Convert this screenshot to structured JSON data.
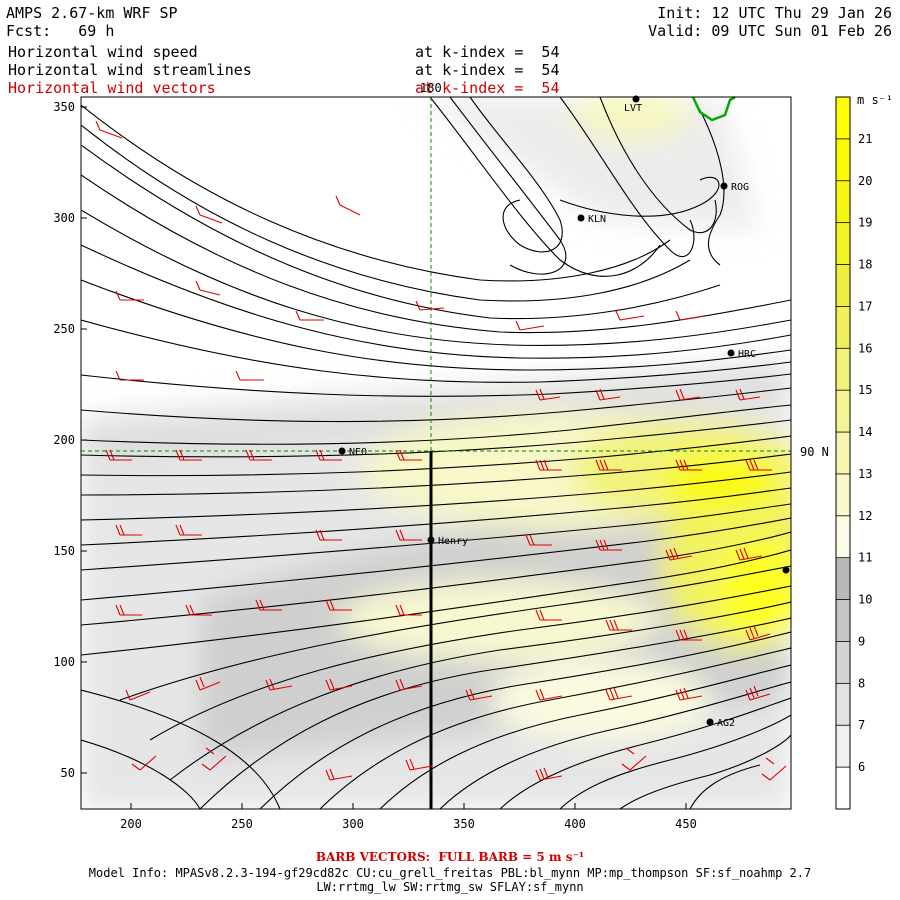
{
  "header": {
    "title": "AMPS 2.67-km WRF SP",
    "forecast": "Fcst:   69 h",
    "init": "Init: 12 UTC Thu 29 Jan 26",
    "valid": "Valid: 09 UTC Sun 01 Feb 26",
    "fields": [
      {
        "name": "Horizontal wind speed",
        "level": "at k-index =  54"
      },
      {
        "name": "Horizontal wind streamlines",
        "level": "at k-index =  54"
      },
      {
        "name": "Horizontal wind vectors",
        "level": "at k-index =  54"
      }
    ]
  },
  "map": {
    "x_ticks": [
      "200",
      "250",
      "300",
      "350",
      "400",
      "450"
    ],
    "y_ticks": [
      "350",
      "300",
      "250",
      "200",
      "150",
      "100",
      "50"
    ],
    "meridian_label": "180",
    "latitude_label": "90 N",
    "stations": [
      {
        "name": "LVT"
      },
      {
        "name": "ROG"
      },
      {
        "name": "KLN"
      },
      {
        "name": "HRC"
      },
      {
        "name": "NEO"
      },
      {
        "name": "Henry"
      },
      {
        "name": "AG2"
      }
    ],
    "colors": {
      "barbs": "#e00000",
      "streamlines": "#000000",
      "coast": "#00aa00",
      "guides": "#008800"
    }
  },
  "colorbar": {
    "unit": "m s⁻¹",
    "levels": [
      "6",
      "7",
      "8",
      "9",
      "10",
      "11",
      "12",
      "13",
      "14",
      "15",
      "16",
      "17",
      "18",
      "19",
      "20",
      "21"
    ],
    "colors": [
      "#ffffff",
      "#f0f0f0",
      "#e2e2e2",
      "#d4d4d4",
      "#c6c6c6",
      "#b8b8b8",
      "#fbfbe6",
      "#f8f8cc",
      "#f6f6b0",
      "#f4f494",
      "#f2f278",
      "#f0f05c",
      "#eeee40",
      "#f2f224",
      "#f6f610",
      "#fafa00",
      "#ffff00"
    ]
  },
  "footer": {
    "barb_note": "BARB VECTORS:  FULL BARB = 5 m s⁻¹",
    "model_info_1": "Model Info: MPASv8.2.3-194-gf29cd82c CU:cu_grell_freitas PBL:bl_mynn MP:mp_thompson SF:sf_noahmp 2.7",
    "model_info_2": "LW:rrtmg_lw SW:rrtmg_sw SFLAY:sf_mynn"
  }
}
